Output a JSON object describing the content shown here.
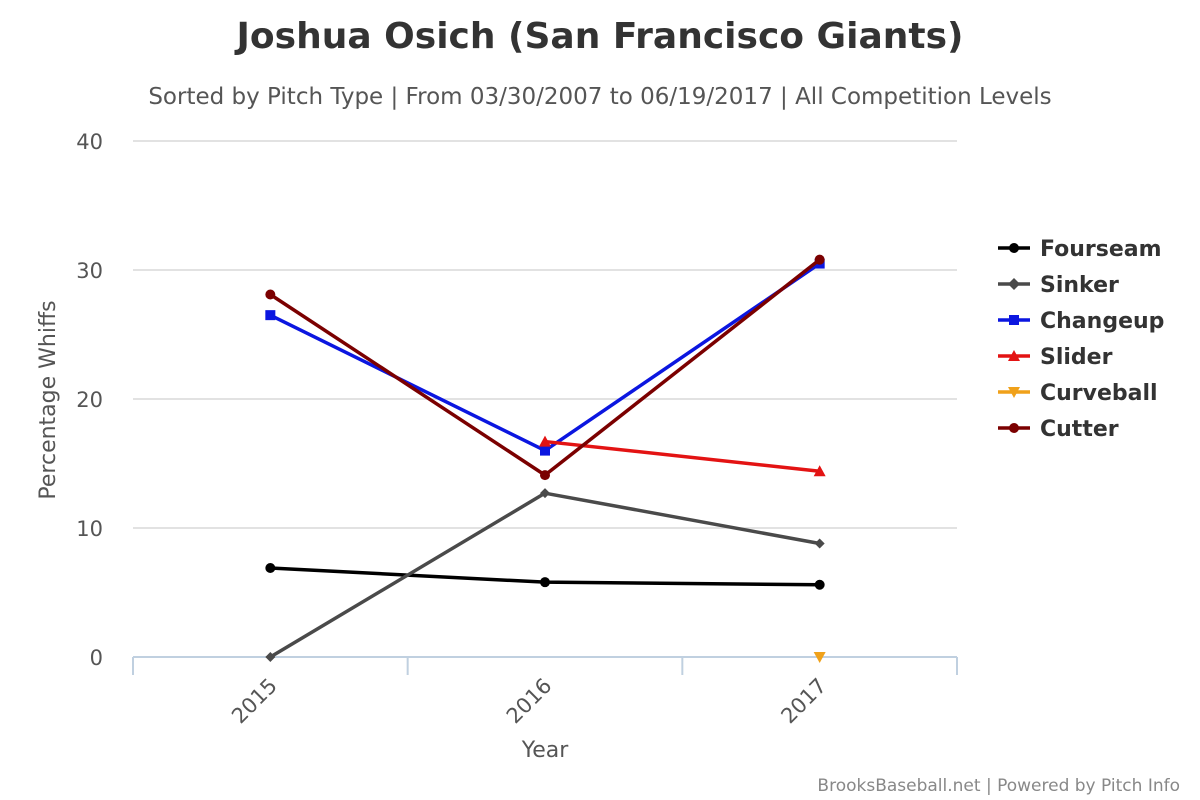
{
  "title": "Joshua Osich (San Francisco Giants)",
  "subtitle": "Sorted by Pitch Type | From 03/30/2007 to 06/19/2017 | All Competition Levels",
  "credits": "BrooksBaseball.net | Powered by Pitch Info",
  "chart_data": {
    "type": "line",
    "title": "Joshua Osich (San Francisco Giants)",
    "subtitle": "Sorted by Pitch Type | From 03/30/2007 to 06/19/2017 | All Competition Levels",
    "xlabel": "Year",
    "ylabel": "Percentage Whiffs",
    "categories": [
      "2015",
      "2016",
      "2017"
    ],
    "ylim": [
      0,
      40
    ],
    "yticks": [
      0,
      10,
      20,
      30,
      40
    ],
    "grid": true,
    "legend_position": "right",
    "series": [
      {
        "name": "Fourseam",
        "color": "#000000",
        "marker": "circle",
        "values": [
          6.9,
          5.8,
          5.6
        ]
      },
      {
        "name": "Sinker",
        "color": "#4a4a4a",
        "marker": "diamond",
        "values": [
          0.0,
          12.7,
          8.8
        ]
      },
      {
        "name": "Changeup",
        "color": "#0b16e0",
        "marker": "square",
        "values": [
          26.5,
          16.0,
          30.5
        ]
      },
      {
        "name": "Slider",
        "color": "#e31313",
        "marker": "triangle",
        "values": [
          null,
          16.7,
          14.4
        ]
      },
      {
        "name": "Curveball",
        "color": "#f0a11a",
        "marker": "triangle-down",
        "values": [
          null,
          null,
          0.0
        ]
      },
      {
        "name": "Cutter",
        "color": "#7b0000",
        "marker": "circle",
        "values": [
          28.1,
          14.1,
          30.8
        ]
      }
    ]
  }
}
